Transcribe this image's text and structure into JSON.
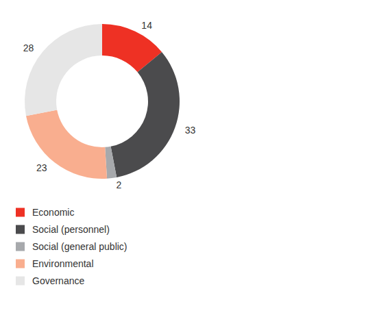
{
  "chart_data": {
    "type": "donut",
    "categories": [
      "Economic",
      "Social (personnel)",
      "Social (general public)",
      "Environmental",
      "Governance"
    ],
    "values": [
      14,
      33,
      2,
      23,
      28
    ],
    "colors": [
      "#ee3124",
      "#4b4b4d",
      "#a7a9ac",
      "#f9ae8f",
      "#e6e6e6"
    ],
    "data_labels": true,
    "legend": "bottom-left"
  }
}
